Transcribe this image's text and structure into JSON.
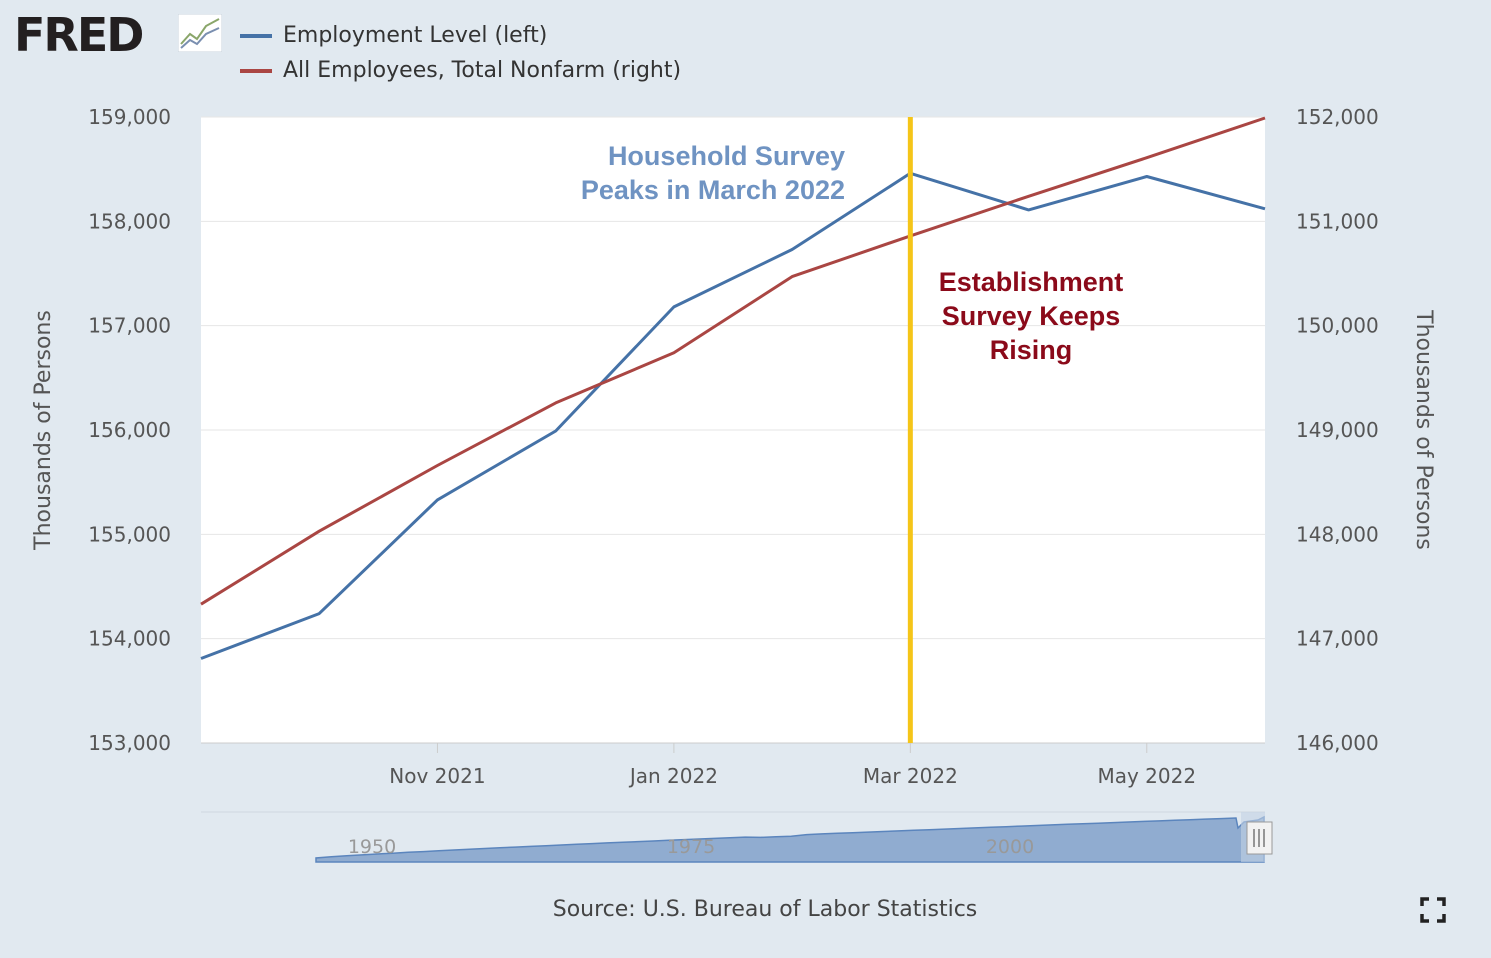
{
  "logo": {
    "text": "FRED"
  },
  "legend": [
    {
      "label": "Employment Level (left)",
      "color": "#4572a7"
    },
    {
      "label": "All Employees, Total Nonfarm (right)",
      "color": "#aa4643"
    }
  ],
  "annotations": {
    "household": [
      "Household Survey",
      "Peaks in March 2022"
    ],
    "establishment": [
      "Establishment",
      "Survey Keeps",
      "Rising"
    ]
  },
  "source": "Source: U.S. Bureau of Labor Statistics",
  "colors": {
    "marker_line": "#f5c518",
    "background": "#e1e9f0",
    "plot_bg": "#ffffff"
  },
  "chart_data": {
    "type": "line",
    "x": [
      "2021-09",
      "2021-10",
      "2021-11",
      "2021-12",
      "2022-01",
      "2022-02",
      "2022-03",
      "2022-04",
      "2022-05",
      "2022-06"
    ],
    "x_tick_labels": [
      "Nov 2021",
      "Jan 2022",
      "Mar 2022",
      "May 2022"
    ],
    "x_tick_positions": [
      "2021-11",
      "2022-01",
      "2022-03",
      "2022-05"
    ],
    "series": [
      {
        "name": "Employment Level (left)",
        "axis": "left",
        "values": [
          153810,
          154240,
          155330,
          155990,
          157180,
          157730,
          158460,
          158110,
          158430,
          158120
        ]
      },
      {
        "name": "All Employees, Total Nonfarm (right)",
        "axis": "right",
        "values": [
          147330,
          148030,
          148660,
          149260,
          149740,
          150470,
          150860,
          151240,
          151610,
          151990
        ]
      }
    ],
    "y_left": {
      "label": "Thousands of Persons",
      "lim": [
        153000,
        159000
      ],
      "ticks": [
        "153,000",
        "154,000",
        "155,000",
        "156,000",
        "157,000",
        "158,000",
        "159,000"
      ]
    },
    "y_right": {
      "label": "Thousands of Persons",
      "lim": [
        146000,
        152000
      ],
      "ticks": [
        "146,000",
        "147,000",
        "148,000",
        "149,000",
        "150,000",
        "151,000",
        "152,000"
      ]
    },
    "vertical_marker": "2022-03",
    "grid": true,
    "legend_placement": "top-left",
    "navigator": {
      "ticks": [
        "1950",
        "1975",
        "2000"
      ]
    }
  }
}
